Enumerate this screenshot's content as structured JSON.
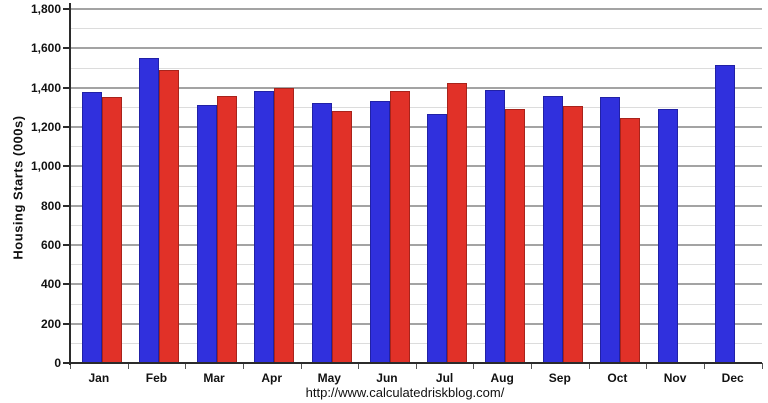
{
  "chart_data": {
    "type": "bar",
    "title": "",
    "xlabel": "",
    "ylabel": "Housing Starts (000s)",
    "caption": "http://www.calculatedriskblog.com/",
    "ylim": [
      0,
      1800
    ],
    "ytick_step": 200,
    "minor_grid_step": 100,
    "grid": true,
    "legend_position": "none",
    "categories": [
      "Jan",
      "Feb",
      "Mar",
      "Apr",
      "May",
      "Jun",
      "Jul",
      "Aug",
      "Sep",
      "Oct",
      "Nov",
      "Dec"
    ],
    "series": [
      {
        "name": "blue",
        "color": "#3030dd",
        "border_color": "#2121a6",
        "values": [
          1380,
          1550,
          1312,
          1385,
          1320,
          1330,
          1265,
          1390,
          1360,
          1355,
          1290,
          1515
        ]
      },
      {
        "name": "red",
        "color": "#e13128",
        "border_color": "#a8231b",
        "values": [
          1355,
          1490,
          1358,
          1400,
          1280,
          1385,
          1425,
          1290,
          1307,
          1245,
          null,
          null
        ]
      }
    ],
    "colors": {
      "major_gridline": "#a3a3a3",
      "minor_gridline": "#dcdcdc",
      "axis": "#2b2b2b",
      "text": "#111111",
      "background": "#ffffff"
    }
  }
}
